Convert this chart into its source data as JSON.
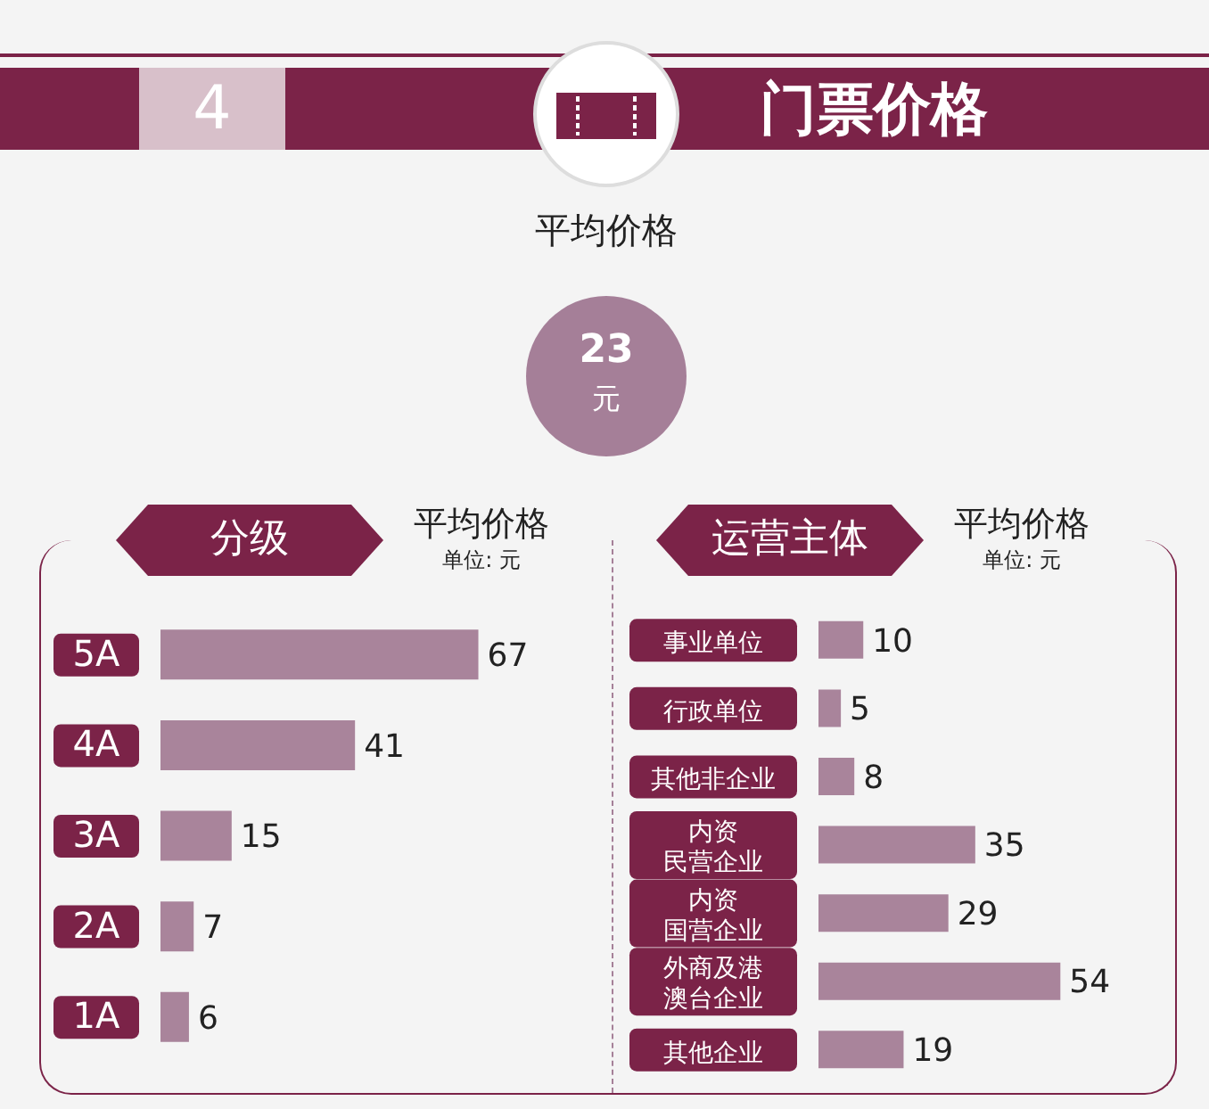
{
  "chart_data": [
    {
      "type": "other",
      "title": "门票价格",
      "annotations": [
        "4",
        "平均价格",
        "23",
        "元"
      ]
    },
    {
      "type": "bar",
      "orientation": "horizontal",
      "title": "分级",
      "xlabel": "平均价格",
      "annotations": [
        "单位: 元"
      ],
      "categories": [
        "5A",
        "4A",
        "3A",
        "2A",
        "1A"
      ],
      "values": [
        67,
        41,
        15,
        7,
        6
      ],
      "color": "#a9849b",
      "data_labels": true,
      "tick_labels": "y",
      "grid": false
    },
    {
      "type": "bar",
      "orientation": "horizontal",
      "title": "运营主体",
      "xlabel": "平均价格",
      "annotations": [
        "单位: 元"
      ],
      "categories": [
        "事业单位",
        "行政单位",
        "其他非企业",
        "内资民营企业",
        "内资国营企业",
        "外商及港澳台企业",
        "其他企业"
      ],
      "values": [
        10,
        5,
        8,
        35,
        29,
        54,
        19
      ],
      "color": "#a9849b",
      "data_labels": true,
      "tick_labels": "y",
      "grid": false
    }
  ]
}
